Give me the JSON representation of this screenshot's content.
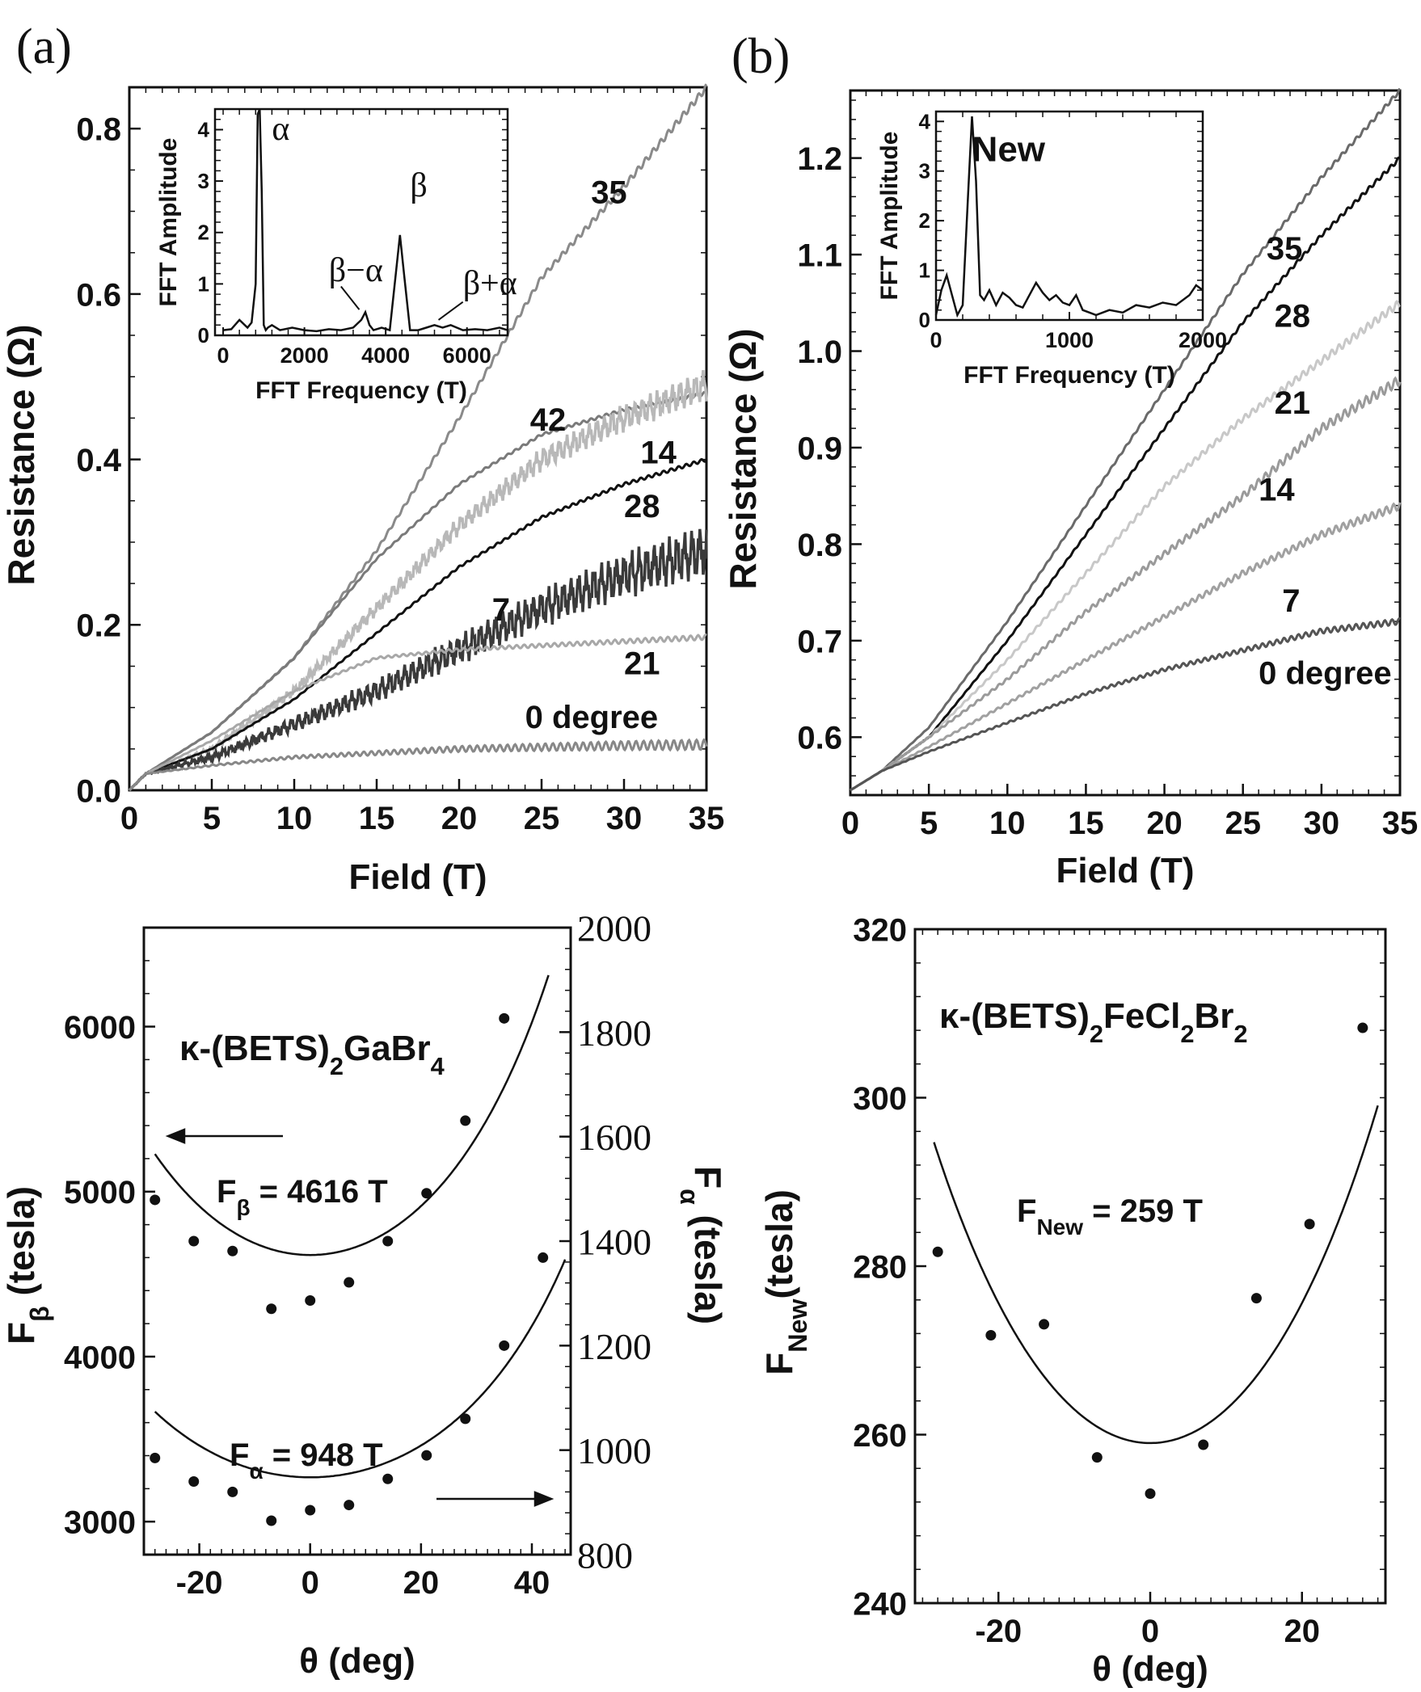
{
  "panel_labels": {
    "a": "(a)",
    "b": "(b)"
  },
  "chart_data": [
    {
      "id": "a_top",
      "type": "line",
      "xlabel": "Field (T)",
      "ylabel": "Resistance (Ω)",
      "xlim": [
        0,
        35
      ],
      "ylim": [
        0,
        0.85
      ],
      "xticks": [
        0,
        5,
        10,
        15,
        20,
        25,
        30,
        35
      ],
      "yticks": [
        0.0,
        0.2,
        0.4,
        0.6,
        0.8
      ],
      "ytick_labels": [
        "0.0",
        "0.2",
        "0.4",
        "0.6",
        "0.8"
      ],
      "series": [
        {
          "name": "35",
          "color": "#8a8a8a",
          "osc": 0.004,
          "x": [
            0,
            1,
            5,
            10,
            15,
            20,
            25,
            30,
            35
          ],
          "values": [
            0.0,
            0.02,
            0.07,
            0.16,
            0.29,
            0.45,
            0.62,
            0.73,
            0.85
          ]
        },
        {
          "name": "42",
          "color": "#7a7a7a",
          "osc": 0.002,
          "x": [
            0,
            1,
            5,
            10,
            15,
            20,
            25,
            30,
            35
          ],
          "values": [
            0.0,
            0.02,
            0.07,
            0.16,
            0.28,
            0.37,
            0.43,
            0.46,
            0.48
          ]
        },
        {
          "name": "14",
          "color": "#b8b8b8",
          "osc": 0.012,
          "x": [
            0,
            1,
            5,
            10,
            15,
            20,
            25,
            30,
            35
          ],
          "values": [
            0.0,
            0.02,
            0.05,
            0.12,
            0.22,
            0.32,
            0.4,
            0.45,
            0.49
          ]
        },
        {
          "name": "28",
          "color": "#111111",
          "osc": 0.002,
          "x": [
            0,
            1,
            5,
            10,
            15,
            20,
            25,
            30,
            35
          ],
          "values": [
            0.0,
            0.02,
            0.05,
            0.11,
            0.19,
            0.27,
            0.33,
            0.37,
            0.4
          ]
        },
        {
          "name": "7",
          "color": "#3a3a3a",
          "osc": 0.02,
          "x": [
            0,
            1,
            5,
            10,
            15,
            20,
            25,
            30,
            35
          ],
          "values": [
            0.0,
            0.02,
            0.04,
            0.08,
            0.12,
            0.17,
            0.22,
            0.26,
            0.29
          ]
        },
        {
          "name": "21",
          "color": "#a8a8a8",
          "osc": 0.003,
          "x": [
            0,
            1,
            5,
            10,
            15,
            20,
            25,
            30,
            35
          ],
          "values": [
            0.0,
            0.02,
            0.06,
            0.12,
            0.16,
            0.17,
            0.175,
            0.18,
            0.185
          ]
        },
        {
          "name": "0 degree",
          "color": "#888888",
          "osc": 0.006,
          "x": [
            0,
            1,
            5,
            10,
            15,
            20,
            25,
            30,
            35
          ],
          "values": [
            0.0,
            0.02,
            0.03,
            0.04,
            0.045,
            0.05,
            0.052,
            0.054,
            0.055
          ]
        }
      ],
      "curve_labels": [
        {
          "text": "35",
          "x": 28.0,
          "y": 0.71
        },
        {
          "text": "42",
          "x": 24.3,
          "y": 0.435
        },
        {
          "text": "14",
          "x": 31.0,
          "y": 0.395
        },
        {
          "text": "28",
          "x": 30.0,
          "y": 0.33
        },
        {
          "text": "7",
          "x": 22.0,
          "y": 0.205
        },
        {
          "text": "21",
          "x": 30.0,
          "y": 0.14
        },
        {
          "text": "0 degree",
          "x": 24.0,
          "y": 0.075
        }
      ],
      "inset": {
        "type": "line",
        "xlabel": "FFT Frequency (T)",
        "ylabel": "FFT Amplitude",
        "xlim": [
          -200,
          7000
        ],
        "ylim": [
          0,
          4.4
        ],
        "xticks": [
          0,
          2000,
          4000,
          6000
        ],
        "yticks": [
          0,
          1,
          2,
          3,
          4
        ],
        "x": [
          0,
          200,
          400,
          600,
          700,
          800,
          850,
          900,
          950,
          1000,
          1050,
          1100,
          1200,
          1400,
          1700,
          2000,
          2300,
          2600,
          2900,
          3200,
          3400,
          3500,
          3600,
          3700,
          3900,
          4100,
          4250,
          4350,
          4450,
          4600,
          4800,
          5000,
          5200,
          5400,
          5600,
          5900,
          6200,
          6500,
          6800,
          7000
        ],
        "values": [
          0.1,
          0.12,
          0.3,
          0.15,
          0.25,
          1.0,
          4.3,
          4.4,
          2.8,
          0.2,
          0.1,
          0.15,
          0.2,
          0.1,
          0.15,
          0.1,
          0.08,
          0.12,
          0.1,
          0.15,
          0.3,
          0.45,
          0.2,
          0.1,
          0.15,
          0.1,
          1.2,
          1.95,
          1.2,
          0.1,
          0.1,
          0.15,
          0.2,
          0.15,
          0.2,
          0.1,
          0.12,
          0.1,
          0.15,
          0.1
        ],
        "annotations": [
          {
            "text": "α",
            "x": 1200,
            "y": 3.8,
            "symbol": true
          },
          {
            "text": "β",
            "x": 4600,
            "y": 2.7,
            "symbol": true
          },
          {
            "text": "β−α",
            "x": 2600,
            "y": 1.05,
            "symbol": true
          },
          {
            "text": "β+α",
            "x": 5900,
            "y": 0.8,
            "symbol": true
          }
        ]
      }
    },
    {
      "id": "b_top",
      "type": "line",
      "xlabel": "Field (T)",
      "ylabel": "Resistance (Ω)",
      "xlim": [
        0,
        35
      ],
      "ylim": [
        0.54,
        1.27
      ],
      "xticks": [
        0,
        5,
        10,
        15,
        20,
        25,
        30,
        35
      ],
      "yticks": [
        0.6,
        0.7,
        0.8,
        0.9,
        1.0,
        1.1,
        1.2
      ],
      "ytick_labels": [
        "0.6",
        "0.7",
        "0.8",
        "0.9",
        "1.0",
        "1.1",
        "1.2"
      ],
      "series": [
        {
          "name": "35",
          "color": "#6a6a6a",
          "osc": 0.002,
          "x": [
            0,
            2,
            5,
            10,
            15,
            20,
            25,
            30,
            35
          ],
          "values": [
            0.545,
            0.565,
            0.61,
            0.72,
            0.84,
            0.96,
            1.08,
            1.18,
            1.27
          ]
        },
        {
          "name": "28",
          "color": "#111111",
          "osc": 0.002,
          "x": [
            0,
            2,
            5,
            10,
            15,
            20,
            25,
            30,
            35
          ],
          "values": [
            0.545,
            0.565,
            0.6,
            0.7,
            0.81,
            0.92,
            1.03,
            1.12,
            1.2
          ]
        },
        {
          "name": "21",
          "color": "#c8c8c8",
          "osc": 0.004,
          "x": [
            0,
            2,
            5,
            10,
            15,
            20,
            25,
            30,
            35
          ],
          "values": [
            0.545,
            0.565,
            0.6,
            0.68,
            0.77,
            0.86,
            0.93,
            0.99,
            1.05
          ]
        },
        {
          "name": "14",
          "color": "#9a9a9a",
          "osc": 0.005,
          "x": [
            0,
            2,
            5,
            10,
            15,
            20,
            25,
            30,
            35
          ],
          "values": [
            0.545,
            0.565,
            0.6,
            0.66,
            0.73,
            0.79,
            0.85,
            0.92,
            0.97
          ]
        },
        {
          "name": "7",
          "color": "#a0a0a0",
          "osc": 0.004,
          "x": [
            0,
            2,
            5,
            10,
            15,
            20,
            25,
            30,
            35
          ],
          "values": [
            0.545,
            0.565,
            0.59,
            0.635,
            0.68,
            0.725,
            0.77,
            0.81,
            0.84
          ]
        },
        {
          "name": "0 degree",
          "color": "#555555",
          "osc": 0.003,
          "x": [
            0,
            2,
            5,
            10,
            15,
            20,
            25,
            30,
            35
          ],
          "values": [
            0.545,
            0.565,
            0.585,
            0.615,
            0.645,
            0.67,
            0.69,
            0.71,
            0.72
          ]
        }
      ],
      "curve_labels": [
        {
          "text": "35",
          "x": 26.5,
          "y": 1.095
        },
        {
          "text": "28",
          "x": 27.0,
          "y": 1.025
        },
        {
          "text": "21",
          "x": 27.0,
          "y": 0.935
        },
        {
          "text": "14",
          "x": 26.0,
          "y": 0.845
        },
        {
          "text": "7",
          "x": 27.5,
          "y": 0.73
        },
        {
          "text": "0 degree",
          "x": 26.0,
          "y": 0.655
        }
      ],
      "inset": {
        "type": "line",
        "xlabel": "FFT Frequency (T)",
        "ylabel": "FFT Amplitude",
        "xlim": [
          0,
          2000
        ],
        "ylim": [
          0,
          4.2
        ],
        "xticks": [
          0,
          1000,
          2000
        ],
        "yticks": [
          0,
          1,
          2,
          3,
          4
        ],
        "x": [
          0,
          40,
          80,
          120,
          160,
          200,
          240,
          270,
          300,
          330,
          360,
          400,
          450,
          500,
          550,
          600,
          650,
          700,
          750,
          800,
          850,
          900,
          950,
          1000,
          1050,
          1100,
          1150,
          1200,
          1300,
          1400,
          1500,
          1600,
          1700,
          1800,
          1900,
          1950,
          2000
        ],
        "values": [
          0.1,
          0.6,
          0.9,
          0.5,
          0.1,
          0.3,
          2.5,
          4.1,
          2.8,
          0.5,
          0.4,
          0.6,
          0.3,
          0.55,
          0.45,
          0.3,
          0.25,
          0.5,
          0.75,
          0.55,
          0.4,
          0.5,
          0.35,
          0.3,
          0.5,
          0.2,
          0.15,
          0.1,
          0.2,
          0.15,
          0.3,
          0.25,
          0.35,
          0.3,
          0.5,
          0.7,
          0.6
        ],
        "annotations": [
          {
            "text": "New",
            "x": 270,
            "y": 3.2,
            "symbol": false
          }
        ]
      }
    },
    {
      "id": "a_bottom",
      "type": "scatter",
      "xlabel": "θ (deg)",
      "ylabel_left": "F",
      "ylabel_left_sub": "β",
      "ylabel_left_unit": " (tesla)",
      "ylabel_right": "F",
      "ylabel_right_sub": "α",
      "ylabel_right_unit": " (tesla)",
      "compound": "κ-(BETS)",
      "compound_sub1": "2",
      "compound_mid": "GaBr",
      "compound_sub2": "4",
      "xlim": [
        -30,
        47
      ],
      "ylim_left": [
        2800,
        6600
      ],
      "ylim_right": [
        800,
        2000
      ],
      "xticks": [
        -20,
        0,
        20,
        40
      ],
      "yticks_left": [
        3000,
        4000,
        5000,
        6000
      ],
      "yticks_right": [
        800,
        1000,
        1200,
        1400,
        1600,
        1800,
        2000
      ],
      "beta_points": {
        "x": [
          -28,
          -21,
          -14,
          -7,
          0,
          7,
          14,
          21,
          28,
          35,
          42
        ],
        "values": [
          4950,
          4700,
          4640,
          4290,
          4340,
          4450,
          4700,
          4990,
          5430,
          6050,
          4600
        ]
      },
      "beta_fit": {
        "F0": 4616,
        "x_range": [
          -28,
          43
        ]
      },
      "beta_fit_label": {
        "name": "F",
        "sub": "β",
        "value": " = 4616 T"
      },
      "alpha_points": {
        "x": [
          -28,
          -21,
          -14,
          -7,
          0,
          7,
          14,
          21,
          28,
          35
        ],
        "values": [
          985,
          940,
          920,
          865,
          885,
          895,
          945,
          990,
          1060,
          1200
        ]
      },
      "alpha_fit": {
        "F0": 948,
        "x_range": [
          -28,
          46
        ]
      },
      "alpha_fit_label": {
        "name": "F",
        "sub": "α",
        "value": " = 948 T"
      }
    },
    {
      "id": "b_bottom",
      "type": "scatter",
      "xlabel": "θ (deg)",
      "ylabel_left": "F",
      "ylabel_left_sub": "New",
      "ylabel_left_unit": "(tesla)",
      "compound": "κ-(BETS)",
      "compound_sub1": "2",
      "compound_mid": "FeCl",
      "compound_sub2": "2",
      "compound_end": "Br",
      "compound_sub3": "2",
      "xlim": [
        -31,
        31
      ],
      "ylim": [
        240,
        320
      ],
      "xticks": [
        -20,
        0,
        20
      ],
      "yticks": [
        240,
        260,
        280,
        300,
        320
      ],
      "points": {
        "x": [
          -28,
          -21,
          -14,
          -7,
          0,
          7,
          14,
          21,
          28
        ],
        "values": [
          281.7,
          271.8,
          273.1,
          257.3,
          253.0,
          258.8,
          276.2,
          285.0,
          308.3
        ]
      },
      "fit": {
        "F0": 259,
        "x_range": [
          -28.5,
          30
        ]
      },
      "fit_label": {
        "name": "F",
        "sub": "New",
        "value": " = 259 T"
      }
    }
  ]
}
